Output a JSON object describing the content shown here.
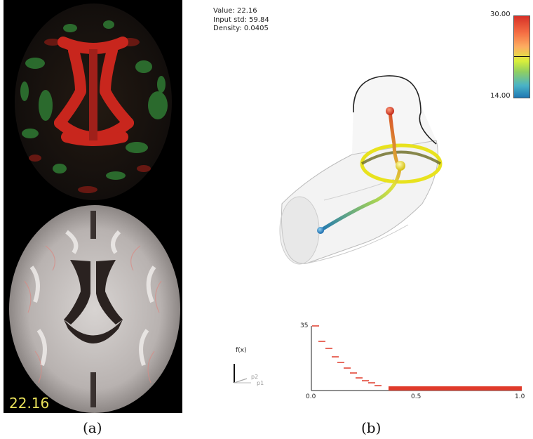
{
  "panel_a": {
    "value": "22.16",
    "caption": "(a)"
  },
  "panel_b": {
    "caption": "(b)",
    "info": {
      "value_line": "Value: 22.16",
      "std_line": "Input std: 59.84",
      "density_line": "Density: 0.0405"
    },
    "colorbar": {
      "max_label": "30.00",
      "min_label": "14.00",
      "current_value": 22.16,
      "colors": [
        "#d73027",
        "#fdae61",
        "#d9ef3b",
        "#4ab3c6",
        "#1f78b4"
      ]
    },
    "plot": {
      "y_top_label": "35",
      "y_axis_label": "f(x)",
      "x_ticks": [
        "0.0",
        "0.5",
        "1.0"
      ],
      "axis_labels": {
        "p1": "p1",
        "p2": "p2"
      },
      "bar_color": "#e03a2a"
    }
  }
}
